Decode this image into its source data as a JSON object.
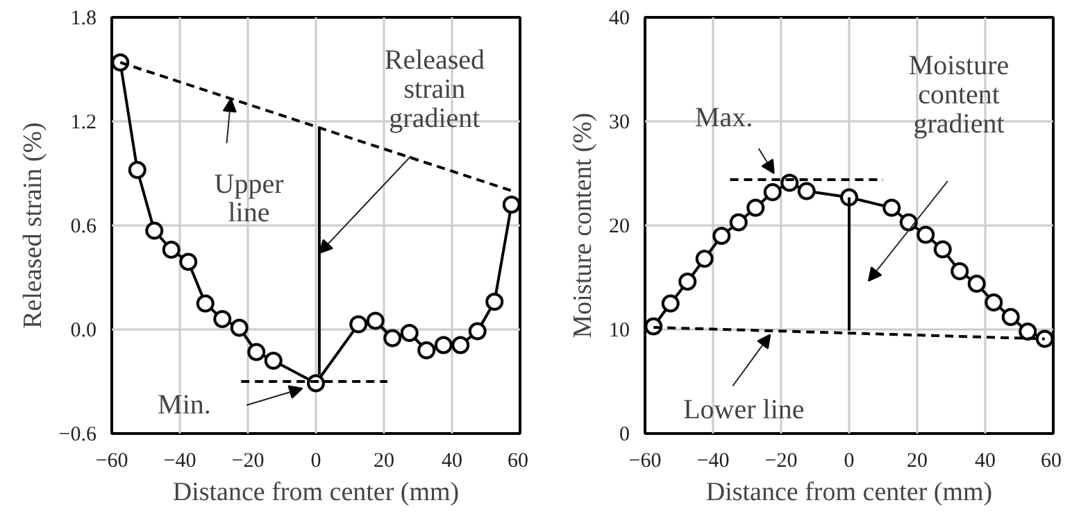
{
  "chart_data": [
    {
      "type": "line",
      "xlabel": "Distance from center (mm)",
      "ylabel": "Released strain (%)",
      "xlim": [
        -60,
        60
      ],
      "ylim": [
        -0.6,
        1.8
      ],
      "xticks": [
        -60,
        -40,
        -20,
        0,
        20,
        40,
        60
      ],
      "yticks": [
        -0.6,
        {
          "value": 0,
          "label": "0.0"
        },
        0.6,
        1.2,
        1.8
      ],
      "grid": true,
      "marker": "circle",
      "series": [
        {
          "color": "#000000",
          "x": [
            -57.5,
            -52.5,
            -47.5,
            -42.5,
            -37.5,
            -32.5,
            -27.5,
            -22.5,
            -17.5,
            -12.5,
            0,
            12.5,
            17.5,
            22.5,
            27.5,
            32.5,
            37.5,
            42.5,
            47.5,
            52.5,
            57.5
          ],
          "values": [
            1.54,
            0.92,
            0.57,
            0.46,
            0.39,
            0.15,
            0.06,
            0.01,
            -0.13,
            -0.18,
            -0.31,
            0.03,
            0.05,
            -0.05,
            -0.02,
            -0.12,
            -0.09,
            -0.09,
            -0.01,
            0.16,
            0.72
          ]
        },
        {
          "color": "#000000",
          "marker": "none",
          "line_style": "dashed",
          "x": [
            -57.5,
            57.5
          ],
          "values": [
            1.54,
            0.8
          ]
        },
        {
          "color": "#000000",
          "marker": "none",
          "line_style": "dashed",
          "x": [
            -22,
            21
          ],
          "values": [
            -0.3,
            -0.3
          ]
        },
        {
          "color": "#000000",
          "marker": "none",
          "line_style": "solid",
          "x": [
            1,
            1
          ],
          "values": [
            1.17,
            -0.26
          ]
        }
      ],
      "annotations": [
        {
          "text": "Upper\nline",
          "x": -25,
          "y": 1.33
        },
        {
          "text": "Released\nstrain\ngradient",
          "x": 1,
          "y": 0.44
        },
        {
          "text": "Min.",
          "x": -4,
          "y": -0.34
        }
      ]
    },
    {
      "type": "line",
      "xlabel": "Distance from center (mm)",
      "ylabel": "Moisture content (%)",
      "xlim": [
        -60,
        60
      ],
      "ylim": [
        0,
        40
      ],
      "xticks": [
        -60,
        -40,
        -20,
        0,
        20,
        40,
        60
      ],
      "yticks": [
        0,
        10,
        20,
        30,
        40
      ],
      "grid": true,
      "marker": "circle",
      "series": [
        {
          "color": "#000000",
          "x": [
            -57.5,
            -52.5,
            -47.5,
            -42.5,
            -37.5,
            -32.5,
            -27.5,
            -22.5,
            -17.5,
            -12.5,
            0,
            12.5,
            17.5,
            22.5,
            27.5,
            32.5,
            37.5,
            42.5,
            47.5,
            52.5,
            57.5
          ],
          "values": [
            10.3,
            12.5,
            14.6,
            16.8,
            19.0,
            20.3,
            21.7,
            23.2,
            24.1,
            23.3,
            22.7,
            21.7,
            20.3,
            19.1,
            17.7,
            15.6,
            14.4,
            12.6,
            11.2,
            9.8,
            9.1
          ]
        },
        {
          "color": "#000000",
          "marker": "none",
          "line_style": "dashed",
          "x": [
            -57.5,
            57.5
          ],
          "values": [
            10.2,
            9.1
          ]
        },
        {
          "color": "#000000",
          "marker": "none",
          "line_style": "dashed",
          "x": [
            -35,
            10
          ],
          "values": [
            24.4,
            24.4
          ]
        },
        {
          "color": "#000000",
          "marker": "none",
          "line_style": "solid",
          "x": [
            0,
            0
          ],
          "values": [
            22.7,
            9.9
          ]
        }
      ],
      "annotations": [
        {
          "text": "Max.",
          "x": -22.1,
          "y": 25.0
        },
        "Moisture\ncontent\ngradient",
        {
          "text": "Lower line",
          "x": -23.2,
          "y": 9.5
        }
      ]
    }
  ]
}
